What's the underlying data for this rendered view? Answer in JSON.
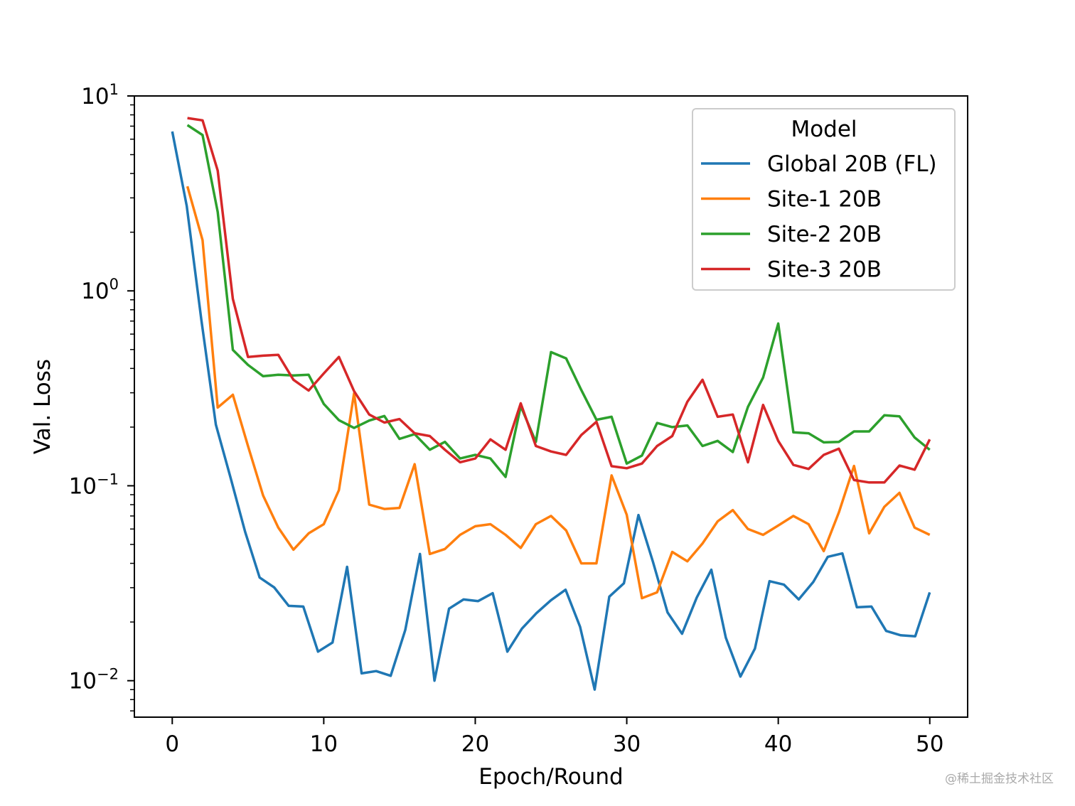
{
  "chart_data": {
    "type": "line",
    "title": "",
    "xlabel": "Epoch/Round",
    "ylabel": "Val. Loss",
    "xlim": [
      -2.5,
      52.5
    ],
    "ylim": [
      0.0065,
      10
    ],
    "yscale": "log",
    "grid": false,
    "x_ticks": [
      0,
      10,
      20,
      30,
      40,
      50
    ],
    "y_ticks": [
      {
        "value": 10,
        "base": "10",
        "exp": "1"
      },
      {
        "value": 1,
        "base": "10",
        "exp": "0"
      },
      {
        "value": 0.1,
        "base": "10",
        "exp": "−1"
      },
      {
        "value": 0.01,
        "base": "10",
        "exp": "−2"
      }
    ],
    "legend": {
      "title": "Model",
      "placement": "upper-right"
    },
    "series": [
      {
        "name": "Global 20B (FL)",
        "color": "#1f77b4",
        "x": [
          0,
          0.96,
          1.92,
          2.88,
          3.85,
          4.81,
          5.77,
          6.73,
          7.69,
          8.65,
          9.62,
          10.58,
          11.54,
          12.5,
          13.46,
          14.42,
          15.38,
          16.35,
          17.31,
          18.27,
          19.23,
          20.19,
          21.15,
          22.12,
          23.08,
          24.04,
          25,
          25.96,
          26.92,
          27.88,
          28.85,
          29.81,
          30.77,
          31.73,
          32.69,
          33.65,
          34.62,
          35.58,
          36.54,
          37.5,
          38.46,
          39.42,
          40.38,
          41.35,
          42.31,
          43.27,
          44.23,
          45.19,
          46.15,
          47.12,
          48.08,
          49.04,
          50
        ],
        "values": [
          6.57,
          2.72,
          0.71,
          0.206,
          0.11,
          0.058,
          0.0338,
          0.0301,
          0.0242,
          0.024,
          0.0141,
          0.0157,
          0.0384,
          0.0109,
          0.0112,
          0.0106,
          0.0182,
          0.0447,
          0.01,
          0.0234,
          0.0261,
          0.0256,
          0.0281,
          0.0141,
          0.0185,
          0.0222,
          0.0259,
          0.0293,
          0.0189,
          0.009,
          0.027,
          0.0316,
          0.0708,
          0.0407,
          0.0224,
          0.0174,
          0.0267,
          0.0371,
          0.0166,
          0.0105,
          0.0146,
          0.0324,
          0.0311,
          0.0261,
          0.0321,
          0.0432,
          0.045,
          0.0238,
          0.024,
          0.018,
          0.0171,
          0.0169,
          0.0284
        ]
      },
      {
        "name": "Site-1 20B",
        "color": "#ff7f0e",
        "x": [
          1,
          2,
          3,
          4,
          5,
          6,
          7,
          8,
          9,
          10,
          11,
          12,
          13,
          14,
          15,
          16,
          17,
          18,
          19,
          20,
          21,
          22,
          23,
          24,
          25,
          26,
          27,
          28,
          29,
          30,
          31,
          32,
          33,
          34,
          35,
          36,
          37,
          38,
          39,
          40,
          41,
          42,
          43,
          44,
          45,
          46,
          47,
          48,
          49,
          50
        ],
        "values": [
          3.44,
          1.82,
          0.252,
          0.293,
          0.16,
          0.089,
          0.061,
          0.047,
          0.057,
          0.0635,
          0.095,
          0.298,
          0.08,
          0.076,
          0.077,
          0.129,
          0.0447,
          0.0474,
          0.056,
          0.062,
          0.0635,
          0.056,
          0.048,
          0.0635,
          0.07,
          0.059,
          0.04,
          0.04,
          0.113,
          0.071,
          0.0265,
          0.0284,
          0.0458,
          0.041,
          0.0506,
          0.0657,
          0.075,
          0.06,
          0.056,
          0.0625,
          0.07,
          0.0635,
          0.0462,
          0.073,
          0.1265,
          0.057,
          0.078,
          0.092,
          0.061,
          0.056
        ]
      },
      {
        "name": "Site-2 20B",
        "color": "#2ca02c",
        "x": [
          1,
          2,
          3,
          4,
          5,
          6,
          7,
          8,
          9,
          10,
          11,
          12,
          13,
          14,
          15,
          16,
          17,
          18,
          19,
          20,
          21,
          22,
          23,
          24,
          25,
          26,
          27,
          28,
          29,
          30,
          31,
          32,
          33,
          34,
          35,
          36,
          37,
          38,
          39,
          40,
          41,
          42,
          43,
          44,
          45,
          46,
          47,
          48,
          49,
          50
        ],
        "values": [
          7.09,
          6.3,
          2.54,
          0.498,
          0.417,
          0.365,
          0.371,
          0.368,
          0.371,
          0.263,
          0.217,
          0.198,
          0.216,
          0.228,
          0.174,
          0.184,
          0.153,
          0.168,
          0.138,
          0.144,
          0.138,
          0.111,
          0.256,
          0.168,
          0.485,
          0.45,
          0.31,
          0.218,
          0.226,
          0.13,
          0.143,
          0.21,
          0.2,
          0.204,
          0.16,
          0.17,
          0.149,
          0.254,
          0.359,
          0.68,
          0.188,
          0.186,
          0.167,
          0.168,
          0.19,
          0.19,
          0.23,
          0.227,
          0.177,
          0.153
        ]
      },
      {
        "name": "Site-3 20B",
        "color": "#d62728",
        "x": [
          1,
          2,
          3,
          4,
          5,
          6,
          7,
          8,
          9,
          10,
          11,
          12,
          13,
          14,
          15,
          16,
          17,
          18,
          19,
          20,
          21,
          22,
          23,
          24,
          25,
          26,
          27,
          28,
          29,
          30,
          31,
          32,
          33,
          34,
          35,
          36,
          37,
          38,
          39,
          40,
          41,
          42,
          43,
          44,
          45,
          46,
          47,
          48,
          49,
          50
        ],
        "values": [
          7.7,
          7.5,
          4.14,
          0.91,
          0.458,
          0.465,
          0.47,
          0.35,
          0.308,
          0.377,
          0.458,
          0.306,
          0.232,
          0.211,
          0.22,
          0.186,
          0.18,
          0.153,
          0.132,
          0.138,
          0.173,
          0.153,
          0.265,
          0.16,
          0.15,
          0.144,
          0.182,
          0.213,
          0.126,
          0.123,
          0.13,
          0.16,
          0.18,
          0.27,
          0.35,
          0.226,
          0.232,
          0.132,
          0.26,
          0.17,
          0.128,
          0.122,
          0.144,
          0.155,
          0.107,
          0.104,
          0.104,
          0.127,
          0.121,
          0.173
        ]
      }
    ]
  },
  "watermark": "@稀土掘金技术社区"
}
